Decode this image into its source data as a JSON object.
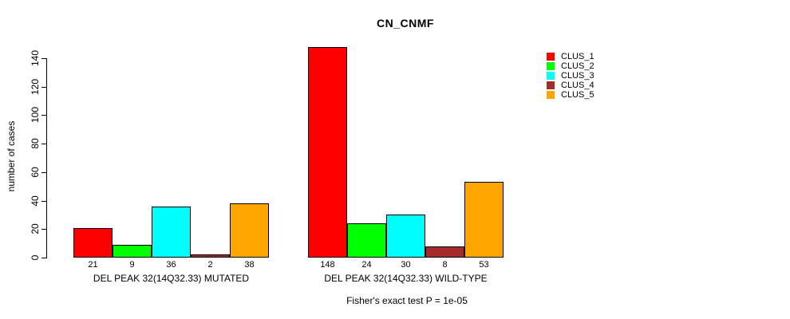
{
  "title": "CN_CNMF",
  "footer_note": "Fisher's exact test P = 1e-05",
  "chart_data": {
    "type": "bar",
    "title": "CN_CNMF",
    "xlabel": "",
    "ylabel": "number of cases",
    "ylim": [
      0,
      140
    ],
    "yticks": [
      0,
      20,
      40,
      60,
      80,
      100,
      120,
      140
    ],
    "grid": false,
    "legend_position": "right",
    "categories": [
      "DEL PEAK 32(14Q32.33) MUTATED",
      "DEL PEAK 32(14Q32.33) WILD-TYPE"
    ],
    "series": [
      {
        "name": "CLUS_1",
        "color": "#FF0000",
        "values": [
          21,
          148
        ]
      },
      {
        "name": "CLUS_2",
        "color": "#00FF00",
        "values": [
          9,
          24
        ]
      },
      {
        "name": "CLUS_3",
        "color": "#00FFFF",
        "values": [
          36,
          30
        ]
      },
      {
        "name": "CLUS_4",
        "color": "#A52A2A",
        "values": [
          2,
          8
        ]
      },
      {
        "name": "CLUS_5",
        "color": "#FFA500",
        "values": [
          38,
          53
        ]
      }
    ],
    "groups": [
      {
        "label": "DEL PEAK 32(14Q32.33) MUTATED",
        "values": [
          21,
          9,
          36,
          2,
          38
        ]
      },
      {
        "label": "DEL PEAK 32(14Q32.33) WILD-TYPE",
        "values": [
          148,
          24,
          30,
          8,
          53
        ]
      }
    ],
    "annotation": "Fisher's exact test P = 1e-05"
  }
}
